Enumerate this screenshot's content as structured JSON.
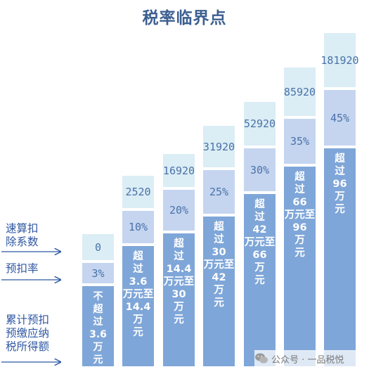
{
  "title": "税率临界点",
  "row_labels": {
    "quick_deduction": "速算扣\n除系数",
    "rate": "预扣率",
    "income": "累计预扣\n预缴应纳\n税所得额"
  },
  "columns": [
    {
      "deduction": "0",
      "rate": "3%",
      "range": "不\n超\n过\n3.6\n万\n元"
    },
    {
      "deduction": "2520",
      "rate": "10%",
      "range": "超\n过\n3.6\n万元至\n14.4\n万\n元"
    },
    {
      "deduction": "16920",
      "rate": "20%",
      "range": "超\n过\n14.4\n万元至\n30\n万\n元"
    },
    {
      "deduction": "31920",
      "rate": "25%",
      "range": "超\n过\n30\n万元至\n42\n万\n元"
    },
    {
      "deduction": "52920",
      "rate": "30%",
      "range": "超\n过\n42\n万元至\n66\n万\n元"
    },
    {
      "deduction": "85920",
      "rate": "35%",
      "range": "超\n过\n66\n万元至\n96\n万\n元"
    },
    {
      "deduction": "181920",
      "rate": "45%",
      "range": "超\n过\n96\n万\n元"
    }
  ],
  "watermark": "公众号 · 一品税悦",
  "colors": {
    "bar": "#7fa6d8",
    "rate_box": "#c5d5f0",
    "deduction_box": "#dbedf5",
    "accent": "#2f57a2"
  }
}
